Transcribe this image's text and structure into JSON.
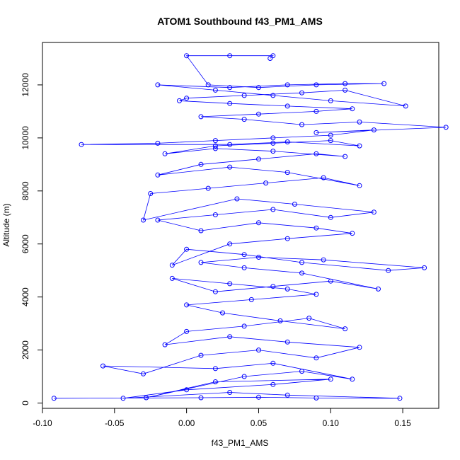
{
  "chart_data": {
    "type": "scatter",
    "title": "ATOM1 Southbound f43_PM1_AMS",
    "xlabel": "f43_PM1_AMS",
    "ylabel": "Altitude (m)",
    "xlim": [
      -0.1,
      0.175
    ],
    "ylim": [
      -200,
      13600
    ],
    "xticks": [
      -0.1,
      -0.05,
      0.0,
      0.05,
      0.1,
      0.15
    ],
    "xtick_labels": [
      "-0.10",
      "-0.05",
      "0.00",
      "0.05",
      "0.10",
      "0.15"
    ],
    "yticks": [
      0,
      2000,
      4000,
      6000,
      8000,
      10000,
      12000
    ],
    "ytick_labels": [
      "0",
      "2000",
      "4000",
      "6000",
      "8000",
      "10000",
      "12000"
    ],
    "grid": false,
    "legend": "none",
    "marker": "open-circle",
    "connected": true,
    "color": "#0000ff",
    "series": [
      {
        "x": [
          -0.092,
          0.01,
          0.05,
          0.09,
          0.148,
          0.07,
          0.03,
          -0.044,
          0.0,
          0.06,
          0.1,
          0.02,
          -0.028,
          0.04,
          0.08,
          0.115,
          0.06,
          0.02,
          -0.058,
          -0.03,
          0.01,
          0.05,
          0.09,
          0.12,
          0.07,
          0.03,
          -0.015,
          0.0,
          0.04,
          0.085,
          0.11,
          0.065,
          0.025,
          0.0,
          0.045,
          0.09,
          0.07,
          0.03,
          -0.01,
          0.02,
          0.06,
          0.1,
          0.133,
          0.08,
          0.04,
          0.01,
          0.05,
          0.095,
          0.165,
          0.14,
          0.08,
          0.04,
          0.0,
          -0.01,
          0.03,
          0.07,
          0.115,
          0.09,
          0.05,
          0.01,
          -0.02,
          0.02,
          0.06,
          0.1,
          0.13,
          0.075,
          0.035,
          -0.03,
          -0.025,
          0.015,
          0.055,
          0.095,
          0.12,
          0.07,
          0.03,
          -0.02,
          0.01,
          0.05,
          0.09,
          0.11,
          0.06,
          0.02,
          -0.015,
          0.02,
          0.06,
          0.1,
          0.12,
          0.07,
          0.03,
          -0.073,
          -0.02,
          0.02,
          0.06,
          0.1,
          0.13,
          0.09,
          0.18,
          0.12,
          0.08,
          0.04,
          0.01,
          0.05,
          0.09,
          0.115,
          0.07,
          0.03,
          -0.005,
          0.0,
          0.04,
          0.08,
          0.11,
          0.152,
          0.1,
          0.06,
          0.02,
          -0.02,
          0.03,
          0.07,
          0.11,
          0.137,
          0.09,
          0.05,
          0.015,
          0.0,
          0.03,
          0.06,
          0.058
        ],
        "y": [
          180,
          200,
          220,
          190,
          180,
          300,
          400,
          180,
          500,
          700,
          900,
          800,
          200,
          1000,
          1200,
          900,
          1500,
          1300,
          1400,
          1100,
          1800,
          2000,
          1700,
          2100,
          2300,
          2500,
          2200,
          2700,
          2900,
          3200,
          2800,
          3100,
          3400,
          3700,
          3900,
          4100,
          4300,
          4500,
          4700,
          4200,
          4400,
          4600,
          4300,
          4900,
          5100,
          5300,
          5500,
          5400,
          5100,
          5000,
          5300,
          5600,
          5800,
          5200,
          6000,
          6200,
          6400,
          6600,
          6800,
          6500,
          6900,
          7100,
          7300,
          7000,
          7200,
          7500,
          7700,
          6900,
          7900,
          8100,
          8300,
          8500,
          8200,
          8700,
          8900,
          8600,
          9000,
          9200,
          9400,
          9300,
          9500,
          9600,
          9400,
          9700,
          9800,
          9900,
          9700,
          9850,
          9750,
          9750,
          9800,
          9900,
          10000,
          10100,
          10300,
          10200,
          10400,
          10600,
          10500,
          10700,
          10800,
          10900,
          11000,
          11100,
          11200,
          11300,
          11400,
          11500,
          11600,
          11700,
          11800,
          11200,
          11400,
          11600,
          11800,
          12000,
          11900,
          12000,
          12050,
          12050,
          12000,
          11900,
          12000,
          13100,
          13100,
          13100,
          13000
        ]
      }
    ]
  }
}
